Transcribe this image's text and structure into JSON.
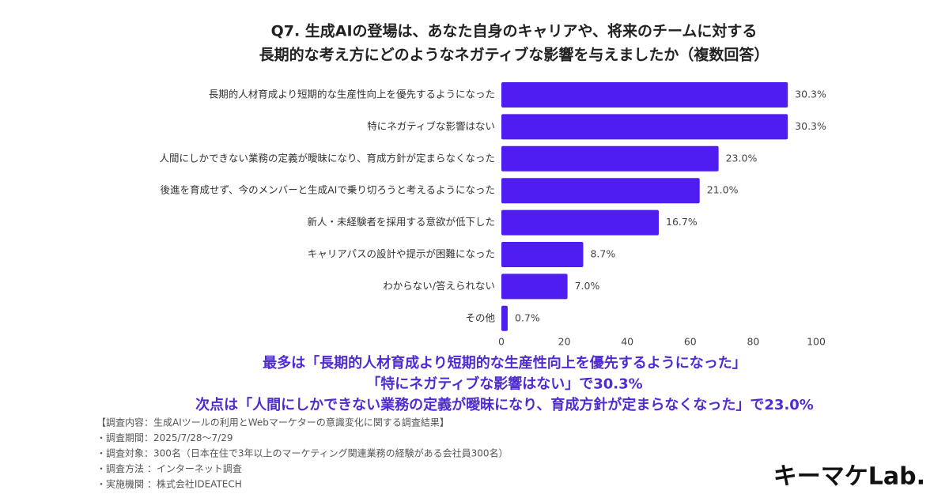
{
  "chart_data": {
    "type": "hbar",
    "title": [
      "Q7. 生成AIの登場は、あなた自身のキャリアや、将来のチームに対する",
      "長期的な考え方にどのようなネガティブな影響を与えましたか（複数回答）"
    ],
    "categories": [
      "長期的人材育成より短期的な生産性向上を優先するようになった",
      "特にネガティブな影響はない",
      "人間にしかできない業務の定義が曖昧になり、育成方針が定まらなくなった",
      "後進を育成せず、今のメンバーと生成AIで乗り切ろうと考えるようになった",
      "新人・未経験者を採用する意欲が低下した",
      "キャリアパスの設計や提示が困難になった",
      "わからない/答えられない",
      "その他"
    ],
    "values": [
      91,
      91,
      69,
      63,
      50,
      26,
      21,
      2
    ],
    "value_labels": [
      "30.3%",
      "30.3%",
      "23.0%",
      "21.0%",
      "16.7%",
      "8.7%",
      "7.0%",
      "0.7%"
    ],
    "color": "#4f1df2",
    "xlim": [
      0,
      100
    ],
    "xticks": [
      0,
      20,
      40,
      60,
      80,
      100
    ],
    "summary": [
      "最多は「長期的人材育成より短期的な生産性向上を優先するようになった」",
      "「特にネガティブな影響はない」で30.3%",
      "次点は「人間にしかできない業務の定義が曖昧になり、育成方針が定まらなくなった」で23.0%"
    ],
    "notes": [
      "【調査内容：生成AIツールの利用とWebマーケターの意識変化に関する調査結果】",
      "・調査期間：2025/7/28〜7/29",
      "・調査対象：300名（日本在住で3年以上のマーケティング関連業務の経験がある会社員300名）",
      "・調査方法 ：インターネット調査",
      "・実施機関 ：株式会社IDEATECH"
    ],
    "logo": "キーマケLab."
  }
}
